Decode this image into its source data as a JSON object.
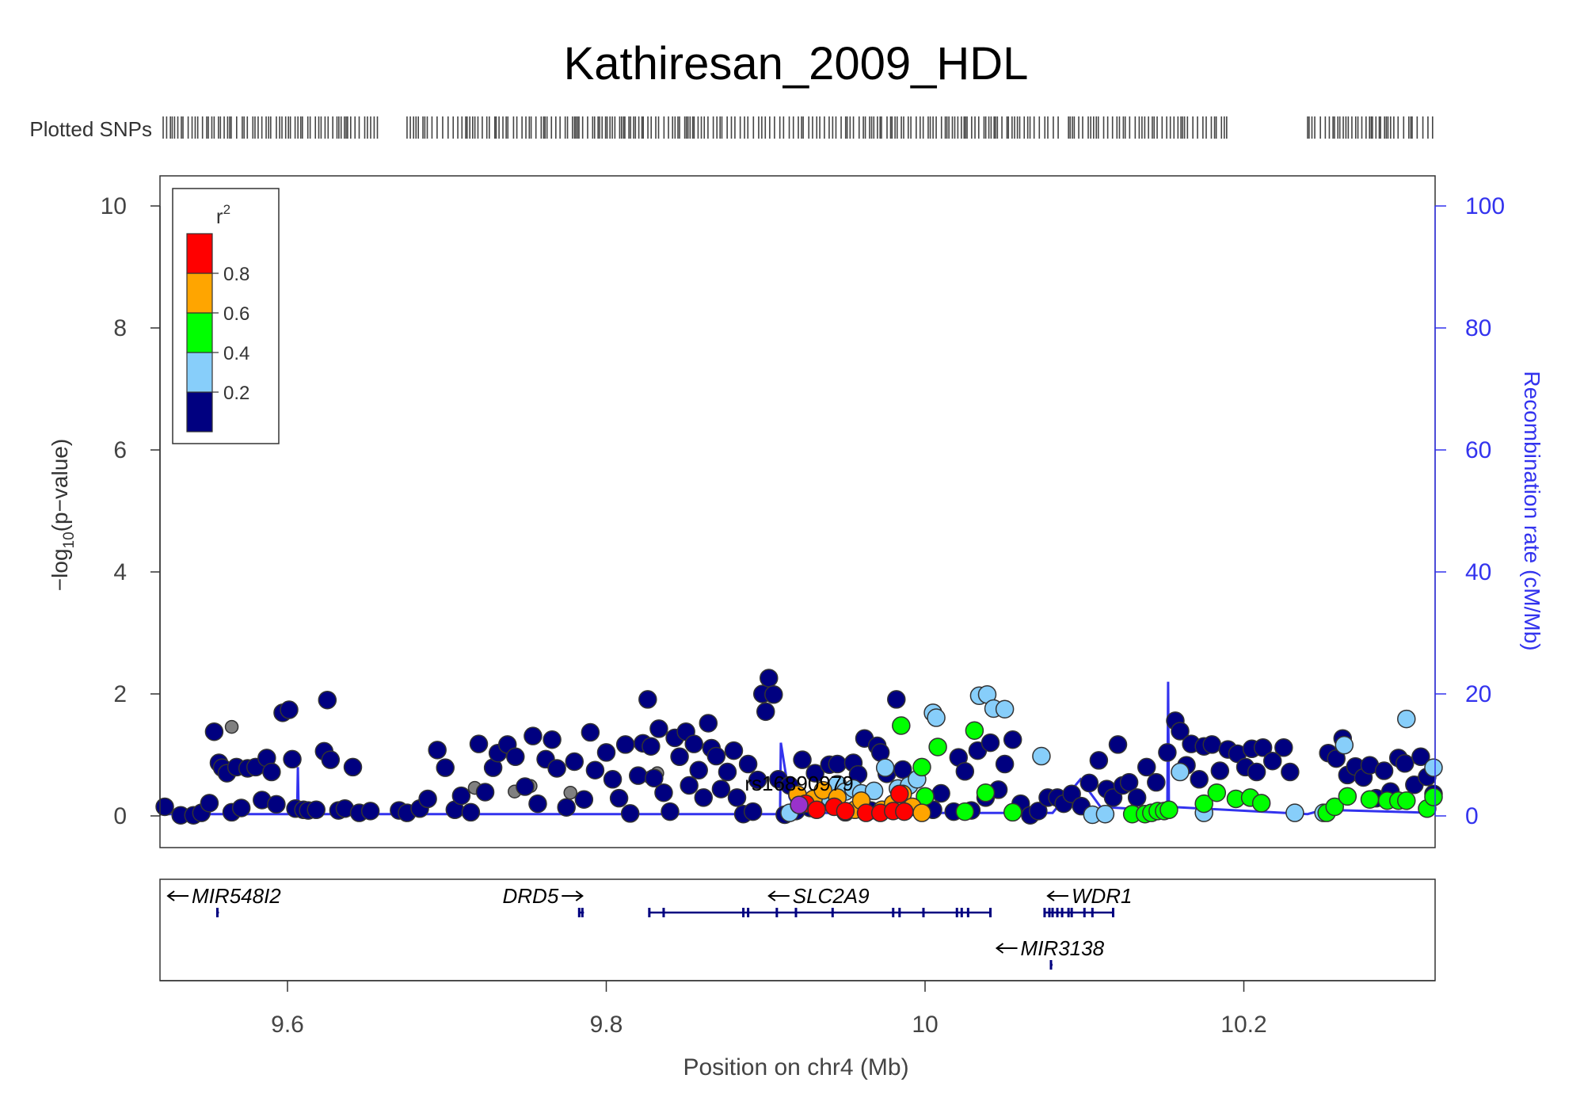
{
  "chart_data": {
    "type": "scatter",
    "title": "Kathiresan_2009_HDL",
    "plotted_snps_label": "Plotted SNPs",
    "xlabel": "Position on chr4 (Mb)",
    "ylabel_left": "-log10(p-value)",
    "ylabel_right": "Recombination rate (cM/Mb)",
    "xlim": [
      9.52,
      10.32
    ],
    "ylim_left": [
      0,
      10
    ],
    "ylim_right": [
      0,
      100
    ],
    "x_ticks": [
      "9.6",
      "9.8",
      "10",
      "10.2"
    ],
    "x_tick_values": [
      9.6,
      9.8,
      10.0,
      10.2
    ],
    "y_ticks_left": [
      "0",
      "2",
      "4",
      "6",
      "8",
      "10"
    ],
    "y_ticks_right": [
      "0",
      "20",
      "40",
      "60",
      "80",
      "100"
    ],
    "grid": false,
    "legend": {
      "title": "r2",
      "placement": "top-left",
      "bins": [
        {
          "label": "0.2",
          "color": "#000080"
        },
        {
          "label": "0.4",
          "color": "#87CEFA"
        },
        {
          "label": "0.6",
          "color": "#00FF00"
        },
        {
          "label": "0.8",
          "color": "#FFA500"
        },
        {
          "color": "#FF0000"
        }
      ]
    },
    "colors": {
      "r2_0_0.2": "#000080",
      "r2_0.2_0.4": "#87CEFA",
      "r2_0.4_0.6": "#00FF00",
      "r2_0.6_0.8": "#FFA500",
      "r2_0.8_1": "#FF0000",
      "no_ld": "#808080",
      "index_snp": "#9932CC",
      "recombination": "#3333EE",
      "genes": "#000080"
    },
    "index_snp": {
      "label": "rs16890979",
      "x": 9.921,
      "y": 0.18
    },
    "recombination_rate": [
      {
        "x": 9.52,
        "y": 0.3
      },
      {
        "x": 9.606,
        "y": 0.3
      },
      {
        "x": 9.6065,
        "y": 8
      },
      {
        "x": 9.607,
        "y": 0.3
      },
      {
        "x": 9.909,
        "y": 0.3
      },
      {
        "x": 9.9095,
        "y": 12
      },
      {
        "x": 9.915,
        "y": 3
      },
      {
        "x": 9.92,
        "y": 0.5
      },
      {
        "x": 10.08,
        "y": 0.5
      },
      {
        "x": 10.0975,
        "y": 6
      },
      {
        "x": 10.11,
        "y": 1.5
      },
      {
        "x": 10.14,
        "y": 1
      },
      {
        "x": 10.152,
        "y": 1
      },
      {
        "x": 10.1525,
        "y": 22
      },
      {
        "x": 10.153,
        "y": 1.5
      },
      {
        "x": 10.24,
        "y": 0.3
      },
      {
        "x": 10.25,
        "y": 1
      },
      {
        "x": 10.32,
        "y": 0.5
      }
    ],
    "snps_dark": [
      [
        9.523,
        0.15
      ],
      [
        9.533,
        0.01
      ],
      [
        9.541,
        0.01
      ],
      [
        9.546,
        0.05
      ],
      [
        9.551,
        0.21
      ],
      [
        9.554,
        1.38
      ],
      [
        9.557,
        0.87
      ],
      [
        9.559,
        0.79
      ],
      [
        9.562,
        0.7
      ],
      [
        9.565,
        0.06
      ],
      [
        9.568,
        0.8
      ],
      [
        9.571,
        0.13
      ],
      [
        9.575,
        0.78
      ],
      [
        9.58,
        0.8
      ],
      [
        9.584,
        0.26
      ],
      [
        9.587,
        0.95
      ],
      [
        9.59,
        0.72
      ],
      [
        9.593,
        0.19
      ],
      [
        9.597,
        1.69
      ],
      [
        9.601,
        1.74
      ],
      [
        9.603,
        0.93
      ],
      [
        9.605,
        0.12
      ],
      [
        9.61,
        0.1
      ],
      [
        9.613,
        0.09
      ],
      [
        9.618,
        0.1
      ],
      [
        9.623,
        1.06
      ],
      [
        9.625,
        1.9
      ],
      [
        9.627,
        0.92
      ],
      [
        9.632,
        0.09
      ],
      [
        9.636,
        0.12
      ],
      [
        9.641,
        0.8
      ],
      [
        9.645,
        0.05
      ],
      [
        9.652,
        0.08
      ],
      [
        9.67,
        0.09
      ],
      [
        9.675,
        0.05
      ],
      [
        9.683,
        0.12
      ],
      [
        9.688,
        0.28
      ],
      [
        9.694,
        1.08
      ],
      [
        9.699,
        0.79
      ],
      [
        9.705,
        0.1
      ],
      [
        9.709,
        0.33
      ],
      [
        9.715,
        0.06
      ],
      [
        9.72,
        1.18
      ],
      [
        9.724,
        0.39
      ],
      [
        9.729,
        0.79
      ],
      [
        9.732,
        1.03
      ],
      [
        9.738,
        1.17
      ],
      [
        9.743,
        0.97
      ],
      [
        9.749,
        0.48
      ],
      [
        9.754,
        1.31
      ],
      [
        9.757,
        0.2
      ],
      [
        9.762,
        0.93
      ],
      [
        9.766,
        1.25
      ],
      [
        9.769,
        0.78
      ],
      [
        9.775,
        0.14
      ],
      [
        9.78,
        0.89
      ],
      [
        9.786,
        0.27
      ],
      [
        9.79,
        1.37
      ],
      [
        9.793,
        0.75
      ],
      [
        9.8,
        1.04
      ],
      [
        9.804,
        0.6
      ],
      [
        9.808,
        0.29
      ],
      [
        9.812,
        1.17
      ],
      [
        9.815,
        0.04
      ],
      [
        9.82,
        0.66
      ],
      [
        9.823,
        1.19
      ],
      [
        9.826,
        1.91
      ],
      [
        9.828,
        1.14
      ],
      [
        9.83,
        0.62
      ],
      [
        9.833,
        1.43
      ],
      [
        9.836,
        0.38
      ],
      [
        9.84,
        0.07
      ],
      [
        9.843,
        1.28
      ],
      [
        9.846,
        0.97
      ],
      [
        9.85,
        1.38
      ],
      [
        9.852,
        0.5
      ],
      [
        9.855,
        1.18
      ],
      [
        9.858,
        0.75
      ],
      [
        9.861,
        0.3
      ],
      [
        9.864,
        1.52
      ],
      [
        9.866,
        1.11
      ],
      [
        9.869,
        0.98
      ],
      [
        9.872,
        0.44
      ],
      [
        9.876,
        0.72
      ],
      [
        9.88,
        1.07
      ],
      [
        9.882,
        0.3
      ],
      [
        9.886,
        0.03
      ],
      [
        9.889,
        0.85
      ],
      [
        9.892,
        0.07
      ],
      [
        9.895,
        0.59
      ],
      [
        9.898,
        2.0
      ],
      [
        9.9,
        1.71
      ],
      [
        9.902,
        2.26
      ],
      [
        9.905,
        1.99
      ],
      [
        9.908,
        0.6
      ],
      [
        9.912,
        0.02
      ],
      [
        9.915,
        0.5
      ],
      [
        9.919,
        0.08
      ],
      [
        9.923,
        0.92
      ],
      [
        9.928,
        0.13
      ],
      [
        9.931,
        0.7
      ],
      [
        9.935,
        0.35
      ],
      [
        9.94,
        0.84
      ],
      [
        9.945,
        0.85
      ],
      [
        9.95,
        0.06
      ],
      [
        9.955,
        0.87
      ],
      [
        9.958,
        0.68
      ],
      [
        9.962,
        1.27
      ],
      [
        9.966,
        0.09
      ],
      [
        9.97,
        1.15
      ],
      [
        9.972,
        1.04
      ],
      [
        9.976,
        0.69
      ],
      [
        9.982,
        1.91
      ],
      [
        9.986,
        0.76
      ],
      [
        9.99,
        0.15
      ],
      [
        10.005,
        0.1
      ],
      [
        10.01,
        0.37
      ],
      [
        10.018,
        0.07
      ],
      [
        10.021,
        0.96
      ],
      [
        10.025,
        0.73
      ],
      [
        10.029,
        0.09
      ],
      [
        10.033,
        1.07
      ],
      [
        10.038,
        0.3
      ],
      [
        10.041,
        1.2
      ],
      [
        10.046,
        0.43
      ],
      [
        10.05,
        0.85
      ],
      [
        10.055,
        1.25
      ],
      [
        10.06,
        0.2
      ],
      [
        10.066,
        0.01
      ],
      [
        10.071,
        0.08
      ],
      [
        10.077,
        0.3
      ],
      [
        10.083,
        0.3
      ],
      [
        10.087,
        0.2
      ],
      [
        10.092,
        0.36
      ],
      [
        10.098,
        0.16
      ],
      [
        10.103,
        0.54
      ],
      [
        10.109,
        0.91
      ],
      [
        10.114,
        0.44
      ],
      [
        10.118,
        0.3
      ],
      [
        10.121,
        1.17
      ],
      [
        10.124,
        0.5
      ],
      [
        10.128,
        0.55
      ],
      [
        10.133,
        0.3
      ],
      [
        10.139,
        0.8
      ],
      [
        10.145,
        0.55
      ],
      [
        10.152,
        1.04
      ],
      [
        10.157,
        1.56
      ],
      [
        10.16,
        1.39
      ],
      [
        10.164,
        0.83
      ],
      [
        10.167,
        1.18
      ],
      [
        10.172,
        0.6
      ],
      [
        10.175,
        1.14
      ],
      [
        10.18,
        1.17
      ],
      [
        10.185,
        0.74
      ],
      [
        10.19,
        1.09
      ],
      [
        10.196,
        1.02
      ],
      [
        10.201,
        0.8
      ],
      [
        10.205,
        1.1
      ],
      [
        10.208,
        0.72
      ],
      [
        10.212,
        1.12
      ],
      [
        10.218,
        0.9
      ],
      [
        10.225,
        1.12
      ],
      [
        10.229,
        0.72
      ],
      [
        10.253,
        1.03
      ],
      [
        10.258,
        0.94
      ],
      [
        10.262,
        1.27
      ],
      [
        10.265,
        0.67
      ],
      [
        10.27,
        0.81
      ],
      [
        10.275,
        0.63
      ],
      [
        10.279,
        0.83
      ],
      [
        10.283,
        0.29
      ],
      [
        10.288,
        0.74
      ],
      [
        10.292,
        0.4
      ],
      [
        10.297,
        0.95
      ],
      [
        10.301,
        0.86
      ],
      [
        10.307,
        0.51
      ],
      [
        10.311,
        0.97
      ],
      [
        10.315,
        0.64
      ],
      [
        10.319,
        0.36
      ]
    ],
    "snps_gray": [
      [
        9.565,
        1.46
      ],
      [
        9.7175,
        0.46
      ],
      [
        9.7425,
        0.4
      ],
      [
        9.7525,
        0.49
      ],
      [
        9.7775,
        0.38
      ],
      [
        9.8275,
        0.63
      ],
      [
        9.832,
        0.7
      ]
    ],
    "snps_lightblue": [
      [
        9.915,
        0.05
      ],
      [
        9.94,
        0.3
      ],
      [
        9.945,
        0.52
      ],
      [
        9.95,
        0.4
      ],
      [
        9.955,
        0.45
      ],
      [
        9.96,
        0.37
      ],
      [
        9.968,
        0.41
      ],
      [
        9.975,
        0.79
      ],
      [
        9.983,
        0.45
      ],
      [
        9.99,
        0.5
      ],
      [
        9.995,
        0.6
      ],
      [
        10.005,
        1.69
      ],
      [
        10.007,
        1.61
      ],
      [
        10.034,
        1.97
      ],
      [
        10.039,
        1.99
      ],
      [
        10.043,
        1.76
      ],
      [
        10.05,
        1.75
      ],
      [
        10.073,
        0.98
      ],
      [
        10.105,
        0.02
      ],
      [
        10.113,
        0.03
      ],
      [
        10.16,
        0.72
      ],
      [
        10.175,
        0.05
      ],
      [
        10.232,
        0.05
      ],
      [
        10.25,
        0.05
      ],
      [
        10.263,
        1.16
      ],
      [
        10.302,
        1.59
      ],
      [
        10.319,
        0.79
      ]
    ],
    "snps_green": [
      [
        9.985,
        1.48
      ],
      [
        9.998,
        0.8
      ],
      [
        10.0,
        0.32
      ],
      [
        10.008,
        1.13
      ],
      [
        10.025,
        0.07
      ],
      [
        10.031,
        1.4
      ],
      [
        10.038,
        0.38
      ],
      [
        10.055,
        0.06
      ],
      [
        10.13,
        0.03
      ],
      [
        10.138,
        0.03
      ],
      [
        10.142,
        0.05
      ],
      [
        10.146,
        0.08
      ],
      [
        10.15,
        0.08
      ],
      [
        10.153,
        0.1
      ],
      [
        10.175,
        0.2
      ],
      [
        10.183,
        0.38
      ],
      [
        10.195,
        0.28
      ],
      [
        10.204,
        0.3
      ],
      [
        10.211,
        0.21
      ],
      [
        10.252,
        0.05
      ],
      [
        10.257,
        0.15
      ],
      [
        10.265,
        0.32
      ],
      [
        10.279,
        0.27
      ],
      [
        10.29,
        0.25
      ],
      [
        10.297,
        0.25
      ],
      [
        10.302,
        0.25
      ],
      [
        10.315,
        0.12
      ],
      [
        10.319,
        0.31
      ]
    ],
    "snps_orange": [
      [
        9.92,
        0.35
      ],
      [
        9.93,
        0.28
      ],
      [
        9.936,
        0.42
      ],
      [
        9.945,
        0.3
      ],
      [
        9.956,
        0.1
      ],
      [
        9.96,
        0.25
      ],
      [
        9.973,
        0.1
      ],
      [
        9.98,
        0.2
      ],
      [
        9.986,
        0.36
      ],
      [
        9.992,
        0.15
      ],
      [
        9.998,
        0.05
      ]
    ],
    "snps_red": [
      [
        9.925,
        0.2
      ],
      [
        9.932,
        0.1
      ],
      [
        9.943,
        0.15
      ],
      [
        9.95,
        0.08
      ],
      [
        9.963,
        0.05
      ],
      [
        9.972,
        0.05
      ],
      [
        9.98,
        0.08
      ],
      [
        9.984,
        0.36
      ],
      [
        9.987,
        0.07
      ]
    ],
    "plotted_snp_positions_ranges": [
      [
        9.522,
        9.658
      ],
      [
        9.675,
        10.085
      ],
      [
        10.09,
        10.19
      ],
      [
        10.24,
        10.32
      ]
    ],
    "genes": [
      {
        "name": "MIR548I2",
        "direction": "left",
        "x_start": 9.556,
        "x_end": 9.557,
        "row": 1,
        "label_x": 9.523,
        "exons": [
          9.556
        ]
      },
      {
        "name": "DRD5",
        "direction": "right",
        "x_start": 9.783,
        "x_end": 9.786,
        "row": 1,
        "label_x": 9.784,
        "exons": [
          9.783,
          9.785
        ]
      },
      {
        "name": "SLC2A9",
        "direction": "left",
        "x_start": 9.827,
        "x_end": 10.041,
        "row": 1,
        "label_x": 9.9,
        "exons": [
          9.827,
          9.836,
          9.886,
          9.889,
          9.907,
          9.919,
          9.942,
          9.98,
          9.984,
          9.999,
          10.02,
          10.023,
          10.027,
          10.041
        ]
      },
      {
        "name": "WDR1",
        "direction": "left",
        "x_start": 10.075,
        "x_end": 10.118,
        "row": 1,
        "label_x": 10.075,
        "exons": [
          10.075,
          10.078,
          10.08,
          10.083,
          10.086,
          10.09,
          10.092,
          10.1,
          10.105,
          10.118
        ]
      },
      {
        "name": "MIR3138",
        "direction": "left",
        "x_start": 10.079,
        "x_end": 10.08,
        "row": 2,
        "label_x": 10.043,
        "exons": [
          10.079
        ]
      }
    ]
  }
}
